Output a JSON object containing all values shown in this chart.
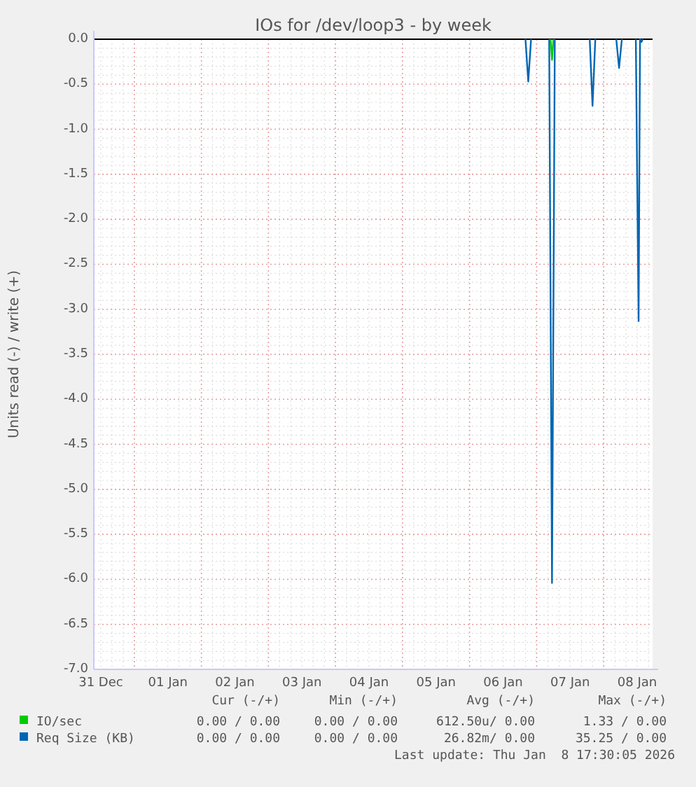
{
  "chart_data": {
    "type": "line",
    "title": "IOs for /dev/loop3 - by week",
    "ylabel": "Units read (-) / write (+)",
    "xlim": [
      "2025-12-31T09:30",
      "2026-01-08T17:30"
    ],
    "xticks": [
      {
        "value": "2025-12-31T12:00",
        "label": "31 Dec"
      },
      {
        "value": "2026-01-01T12:00",
        "label": "01 Jan"
      },
      {
        "value": "2026-01-02T12:00",
        "label": "02 Jan"
      },
      {
        "value": "2026-01-03T12:00",
        "label": "03 Jan"
      },
      {
        "value": "2026-01-04T12:00",
        "label": "04 Jan"
      },
      {
        "value": "2026-01-05T12:00",
        "label": "05 Jan"
      },
      {
        "value": "2026-01-06T12:00",
        "label": "06 Jan"
      },
      {
        "value": "2026-01-07T12:00",
        "label": "07 Jan"
      },
      {
        "value": "2026-01-08T12:00",
        "label": "08 Jan"
      }
    ],
    "ylim": [
      -7,
      0
    ],
    "yticks": [
      {
        "value": 0,
        "label": "0.0"
      },
      {
        "value": -0.5,
        "label": "-0.5"
      },
      {
        "value": -1,
        "label": "-1.0"
      },
      {
        "value": -1.5,
        "label": "-1.5"
      },
      {
        "value": -2,
        "label": "-2.0"
      },
      {
        "value": -2.5,
        "label": "-2.5"
      },
      {
        "value": -3,
        "label": "-3.0"
      },
      {
        "value": -3.5,
        "label": "-3.5"
      },
      {
        "value": -4,
        "label": "-4.0"
      },
      {
        "value": -4.5,
        "label": "-4.5"
      },
      {
        "value": -5,
        "label": "-5.0"
      },
      {
        "value": -5.5,
        "label": "-5.5"
      },
      {
        "value": -6,
        "label": "-6.0"
      },
      {
        "value": -6.5,
        "label": "-6.5"
      },
      {
        "value": -7,
        "label": "-7.0"
      }
    ],
    "grid": true,
    "legend": "bottom",
    "line_style": "solid",
    "marker": "none",
    "series": [
      {
        "name": "IO/sec",
        "color": "#00cc00",
        "x": [
          "2026-01-07T05:00",
          "2026-01-07T05:30",
          "2026-01-07T06:00"
        ],
        "values": [
          0,
          -0.23,
          0
        ]
      },
      {
        "name": "Req Size (KB)",
        "color": "#0066b3",
        "x": [
          "2026-01-06T20:00",
          "2026-01-06T21:00",
          "2026-01-06T22:00",
          "2026-01-07T00:00",
          "2026-01-07T04:30",
          "2026-01-07T05:30",
          "2026-01-07T06:30",
          "2026-01-07T12:00",
          "2026-01-07T19:00",
          "2026-01-07T20:00",
          "2026-01-07T21:00",
          "2026-01-08T00:00",
          "2026-01-08T04:30",
          "2026-01-08T05:30",
          "2026-01-08T06:30",
          "2026-01-08T09:00",
          "2026-01-08T11:30",
          "2026-01-08T12:30",
          "2026-01-08T13:00",
          "2026-01-08T13:30",
          "2026-01-08T14:00"
        ],
        "values": [
          0,
          -0.47,
          0,
          null,
          0,
          -6.04,
          0,
          null,
          0,
          -0.74,
          0,
          null,
          0,
          -0.32,
          0,
          null,
          0,
          -3.13,
          0,
          -0.03,
          0
        ]
      }
    ],
    "annotations": [
      "Cur (-/+)",
      "Min (-/+)",
      "Avg (-/+)",
      "Max (-/+)",
      "0.00 / 0.00",
      "0.00 / 0.00",
      "612.50u/ 0.00",
      "1.33 / 0.00",
      "0.00 / 0.00",
      "0.00 / 0.00",
      "26.82m/ 0.00",
      "35.25 / 0.00",
      "Last update: Thu Jan  8 17:30:05 2026"
    ]
  }
}
